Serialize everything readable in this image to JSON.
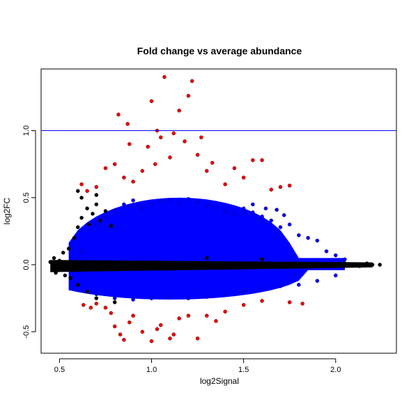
{
  "chart_data": {
    "type": "scatter",
    "title": "Fold change vs average abundance",
    "xlabel": "log2Signal",
    "ylabel": "log2FC",
    "xlim": [
      0.4,
      2.33
    ],
    "ylim": [
      -0.66,
      1.46
    ],
    "xticks": [
      0.5,
      1.0,
      1.5,
      2.0
    ],
    "xtick_labels": [
      "0.5",
      "1.0",
      "1.5",
      "2.0"
    ],
    "yticks": [
      -0.5,
      0.0,
      0.5,
      1.0
    ],
    "ytick_labels": [
      "-0.5",
      "0.0",
      "0.5",
      "1.0"
    ],
    "grid": false,
    "legend": "none",
    "reference_lines": [
      {
        "orientation": "horizontal",
        "y": 1.0,
        "color": "#0000ff"
      }
    ],
    "series_colors": {
      "not_significant": "#000000",
      "significant": "#0000ff",
      "significant_large_fc": "#ee0000"
    },
    "series": [
      {
        "color": "#000000",
        "description_key": "not_significant",
        "points": [
          [
            0.45,
            0.02
          ],
          [
            0.46,
            -0.03
          ],
          [
            0.47,
            0.05
          ],
          [
            0.48,
            -0.06
          ],
          [
            0.49,
            0.01
          ],
          [
            0.5,
            0.03
          ],
          [
            0.5,
            -0.04
          ],
          [
            0.52,
            0.09
          ],
          [
            0.53,
            -0.08
          ],
          [
            0.55,
            0.12
          ],
          [
            0.56,
            -0.1
          ],
          [
            0.58,
            0.2
          ],
          [
            0.6,
            0.28
          ],
          [
            0.6,
            -0.15
          ],
          [
            0.62,
            0.35
          ],
          [
            0.65,
            0.42
          ],
          [
            0.66,
            0.3
          ],
          [
            0.68,
            0.38
          ],
          [
            0.7,
            0.45
          ],
          [
            0.72,
            0.33
          ],
          [
            0.75,
            0.4
          ],
          [
            0.78,
            0.29
          ],
          [
            0.6,
            0.55
          ],
          [
            0.62,
            0.5
          ],
          [
            0.7,
            0.52
          ],
          [
            0.85,
            0.01
          ],
          [
            0.95,
            0.0
          ],
          [
            1.05,
            -0.01
          ],
          [
            1.15,
            0.0
          ],
          [
            1.25,
            0.01
          ],
          [
            1.35,
            -0.02
          ],
          [
            1.45,
            0.0
          ],
          [
            1.55,
            -0.01
          ],
          [
            1.65,
            0.0
          ],
          [
            1.75,
            0.01
          ],
          [
            1.85,
            -0.01
          ],
          [
            1.95,
            0.0
          ],
          [
            2.05,
            0.01
          ],
          [
            2.1,
            0.0
          ],
          [
            2.13,
            -0.01
          ],
          [
            2.17,
            0.01
          ],
          [
            2.2,
            0.0
          ],
          [
            2.24,
            0.0
          ],
          [
            0.65,
            -0.2
          ],
          [
            0.7,
            -0.25
          ],
          [
            0.8,
            -0.28
          ],
          [
            1.3,
            0.05
          ],
          [
            1.6,
            0.04
          ]
        ]
      },
      {
        "color": "#0000ff",
        "description_key": "significant",
        "points": [
          [
            0.62,
            0.1
          ],
          [
            0.7,
            0.3
          ],
          [
            0.75,
            0.35
          ],
          [
            0.8,
            0.4
          ],
          [
            0.85,
            0.45
          ],
          [
            0.9,
            0.48
          ],
          [
            0.95,
            0.42
          ],
          [
            1.0,
            0.45
          ],
          [
            1.05,
            0.47
          ],
          [
            1.1,
            0.48
          ],
          [
            1.15,
            0.46
          ],
          [
            1.2,
            0.49
          ],
          [
            1.25,
            0.47
          ],
          [
            1.3,
            0.44
          ],
          [
            1.35,
            0.43
          ],
          [
            1.4,
            0.4
          ],
          [
            1.45,
            0.38
          ],
          [
            1.5,
            0.42
          ],
          [
            1.55,
            0.39
          ],
          [
            1.6,
            0.36
          ],
          [
            1.65,
            0.33
          ],
          [
            1.7,
            0.28
          ],
          [
            1.75,
            0.3
          ],
          [
            1.8,
            0.22
          ],
          [
            1.85,
            0.2
          ],
          [
            1.9,
            0.18
          ],
          [
            1.95,
            0.1
          ],
          [
            2.0,
            0.07
          ],
          [
            2.05,
            0.04
          ],
          [
            0.7,
            -0.22
          ],
          [
            0.8,
            -0.25
          ],
          [
            0.9,
            -0.26
          ],
          [
            1.0,
            -0.25
          ],
          [
            1.1,
            -0.24
          ],
          [
            1.2,
            -0.25
          ],
          [
            1.3,
            -0.24
          ],
          [
            1.4,
            -0.22
          ],
          [
            1.5,
            -0.2
          ],
          [
            1.6,
            -0.18
          ],
          [
            1.7,
            -0.16
          ],
          [
            1.8,
            -0.15
          ],
          [
            1.9,
            -0.12
          ],
          [
            2.0,
            -0.08
          ],
          [
            1.55,
            0.45
          ],
          [
            1.62,
            0.42
          ],
          [
            1.68,
            0.41
          ],
          [
            1.72,
            0.37
          ]
        ]
      },
      {
        "color": "#ee0000",
        "description_key": "significant_large_fc",
        "points": [
          [
            0.75,
            0.72
          ],
          [
            0.8,
            0.75
          ],
          [
            0.82,
            1.12
          ],
          [
            0.85,
            0.65
          ],
          [
            0.87,
            1.05
          ],
          [
            0.88,
            0.9
          ],
          [
            0.9,
            0.62
          ],
          [
            0.95,
            0.7
          ],
          [
            0.98,
            0.88
          ],
          [
            1.0,
            1.22
          ],
          [
            1.02,
            0.75
          ],
          [
            1.03,
            1.0
          ],
          [
            1.05,
            0.95
          ],
          [
            1.07,
            1.4
          ],
          [
            1.1,
            0.8
          ],
          [
            1.12,
            0.98
          ],
          [
            1.15,
            1.15
          ],
          [
            1.18,
            0.92
          ],
          [
            1.2,
            1.26
          ],
          [
            1.22,
            1.37
          ],
          [
            1.25,
            0.82
          ],
          [
            1.27,
            0.95
          ],
          [
            1.3,
            0.7
          ],
          [
            1.33,
            0.76
          ],
          [
            1.4,
            0.6
          ],
          [
            1.45,
            0.72
          ],
          [
            1.5,
            0.65
          ],
          [
            1.55,
            0.78
          ],
          [
            1.6,
            0.78
          ],
          [
            1.65,
            0.56
          ],
          [
            1.7,
            0.58
          ],
          [
            1.75,
            0.59
          ],
          [
            0.7,
            0.58
          ],
          [
            0.65,
            0.55
          ],
          [
            0.62,
            0.6
          ],
          [
            0.7,
            -0.29
          ],
          [
            0.75,
            -0.32
          ],
          [
            0.78,
            -0.36
          ],
          [
            0.8,
            -0.46
          ],
          [
            0.83,
            -0.52
          ],
          [
            0.85,
            -0.56
          ],
          [
            0.88,
            -0.43
          ],
          [
            0.9,
            -0.38
          ],
          [
            0.95,
            -0.5
          ],
          [
            1.0,
            -0.57
          ],
          [
            1.03,
            -0.48
          ],
          [
            1.05,
            -0.45
          ],
          [
            1.1,
            -0.55
          ],
          [
            1.12,
            -0.52
          ],
          [
            1.15,
            -0.4
          ],
          [
            1.2,
            -0.38
          ],
          [
            1.25,
            -0.55
          ],
          [
            1.3,
            -0.38
          ],
          [
            1.35,
            -0.42
          ],
          [
            1.4,
            -0.35
          ],
          [
            1.5,
            -0.3
          ],
          [
            1.6,
            -0.27
          ],
          [
            1.75,
            -0.28
          ],
          [
            1.82,
            -0.29
          ],
          [
            0.63,
            -0.3
          ],
          [
            0.67,
            -0.32
          ]
        ]
      }
    ]
  }
}
